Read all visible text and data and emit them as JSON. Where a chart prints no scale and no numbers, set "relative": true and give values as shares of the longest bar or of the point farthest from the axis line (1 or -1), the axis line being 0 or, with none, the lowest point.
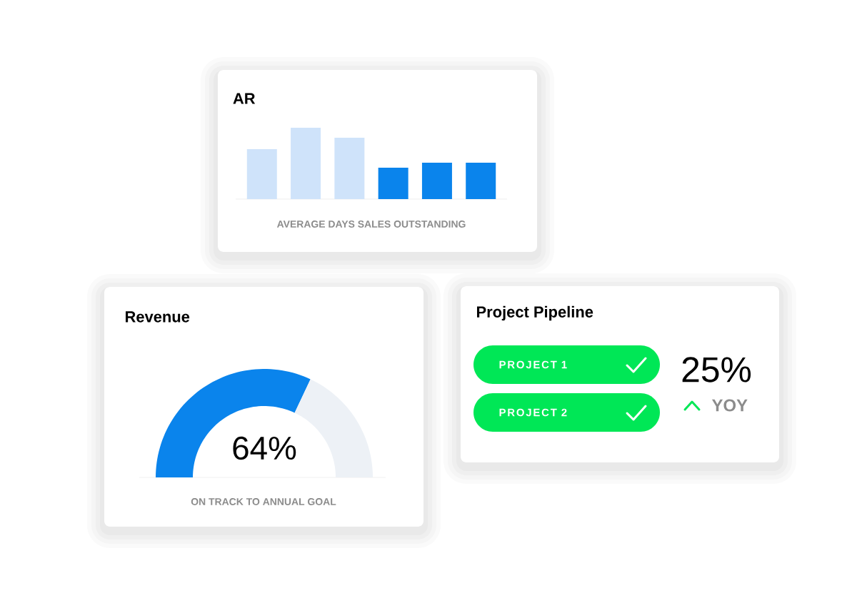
{
  "chart_data": [
    {
      "type": "bar",
      "title": "AR",
      "xlabel": "AVERAGE DAYS SALES OUTSTANDING",
      "categories": [
        null,
        null,
        null,
        null,
        null,
        null
      ],
      "values": [
        0.7,
        1,
        0.86,
        0.44,
        0.51,
        0.51
      ],
      "colors": [
        "#cfe3fa",
        "#cfe3fa",
        "#cfe3fa",
        "#0a84ec",
        "#0a84ec",
        "#0a84ec"
      ],
      "relative": true
    },
    {
      "type": "donut",
      "title": "Revenue",
      "xlabel": "ON TRACK TO ANNUAL GOAL",
      "categories": [
        null,
        null
      ],
      "values": [
        64,
        36
      ],
      "colors": [
        "#0a84ec",
        "#edf1f6"
      ],
      "value_labels": [
        "64%",
        null
      ]
    },
    {
      "type": "other",
      "title": "Project Pipeline",
      "annotations": [
        "PROJECT 1",
        "PROJECT 2",
        "25%",
        "YOY"
      ]
    }
  ]
}
